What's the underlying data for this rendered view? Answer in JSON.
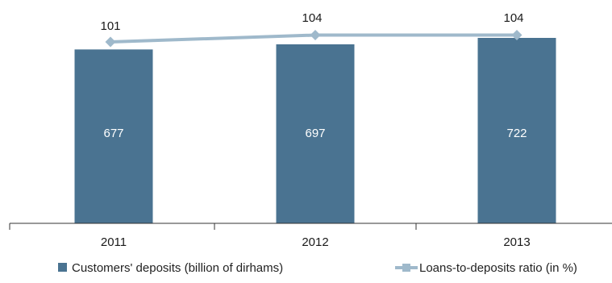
{
  "chart_data": {
    "type": "bar",
    "categories": [
      "2011",
      "2012",
      "2013"
    ],
    "series": [
      {
        "name": "Customers' deposits (billion of dirhams)",
        "type": "bar",
        "values": [
          677,
          697,
          722
        ],
        "color": "#4a7391"
      },
      {
        "name": "Loans-to-deposits ratio (in %)",
        "type": "line",
        "values": [
          101,
          104,
          104
        ],
        "color": "#9fb9cb",
        "marker": "diamond"
      }
    ],
    "title": "",
    "xlabel": "",
    "ylabel": "",
    "legend_position": "bottom",
    "grid": false
  }
}
